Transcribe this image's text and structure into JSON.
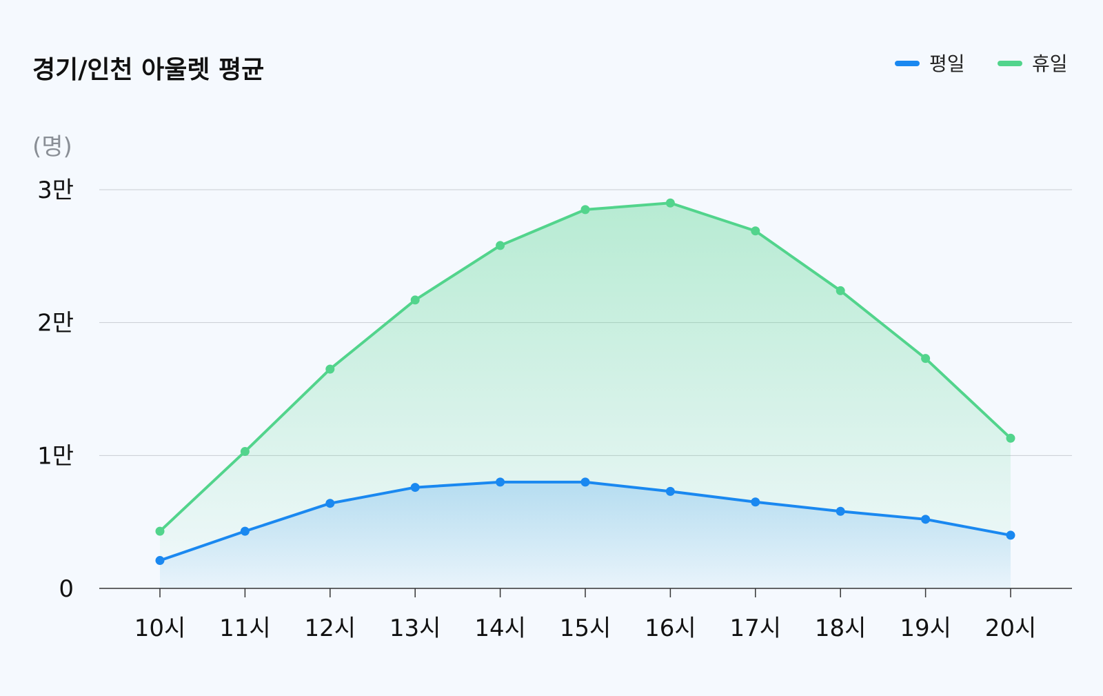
{
  "chart_data": {
    "type": "line",
    "title": "경기/인천 아울렛 평균",
    "unit_label": "(명)",
    "categories": [
      "10시",
      "11시",
      "12시",
      "13시",
      "14시",
      "15시",
      "16시",
      "17시",
      "18시",
      "19시",
      "20시"
    ],
    "series": [
      {
        "name": "평일",
        "color": "#1a88f0",
        "values": [
          2100,
          4300,
          6400,
          7600,
          8000,
          8000,
          7300,
          6500,
          5800,
          5200,
          4000
        ]
      },
      {
        "name": "휴일",
        "color": "#52d48c",
        "values": [
          4300,
          10300,
          16500,
          21700,
          25800,
          28500,
          29000,
          26900,
          22400,
          17300,
          11300
        ]
      }
    ],
    "ylim": [
      0,
      30000
    ],
    "yticks": [
      0,
      10000,
      20000,
      30000
    ],
    "ytick_labels": [
      "0",
      "1만",
      "2만",
      "3만"
    ],
    "grid": true,
    "legend_position": "top-right",
    "area_fill": true
  }
}
